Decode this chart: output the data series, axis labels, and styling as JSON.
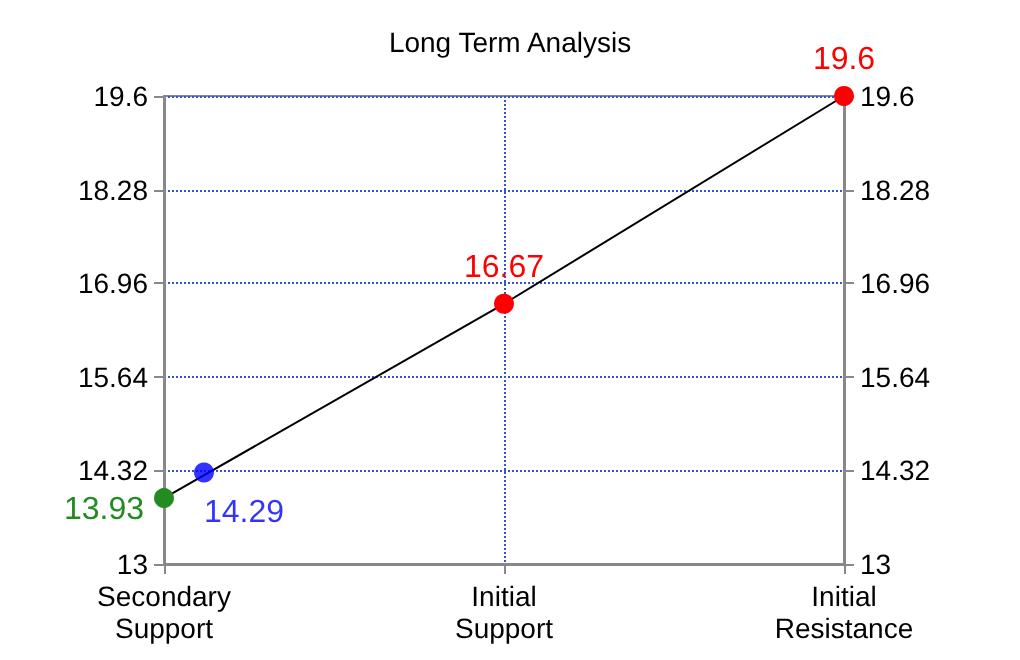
{
  "chart_data": {
    "type": "line",
    "title": "Long Term Analysis",
    "categories": [
      "Secondary\nSupport",
      "Initial\nSupport",
      "Initial\nResistance"
    ],
    "series": [
      {
        "color": "#000000",
        "colors": [
          "#228b22",
          "#ff0000",
          "#ff0000"
        ],
        "values": [
          13.93,
          16.67,
          19.6
        ]
      },
      {
        "type": "scatter",
        "color": "#0000ff",
        "x": [
          "Secondary\nSupport"
        ],
        "values": [
          14.29
        ]
      }
    ],
    "data_labels": true,
    "marker": "circle",
    "line_style": "solid",
    "grid": true,
    "ylim": [
      13,
      19.6
    ],
    "yticks": [
      13,
      14.32,
      15.64,
      16.96,
      18.28,
      19.6
    ],
    "y2lim": [
      13,
      19.6
    ],
    "y2ticks": [
      13,
      14.32,
      15.64,
      16.96,
      18.28,
      19.6
    ]
  }
}
